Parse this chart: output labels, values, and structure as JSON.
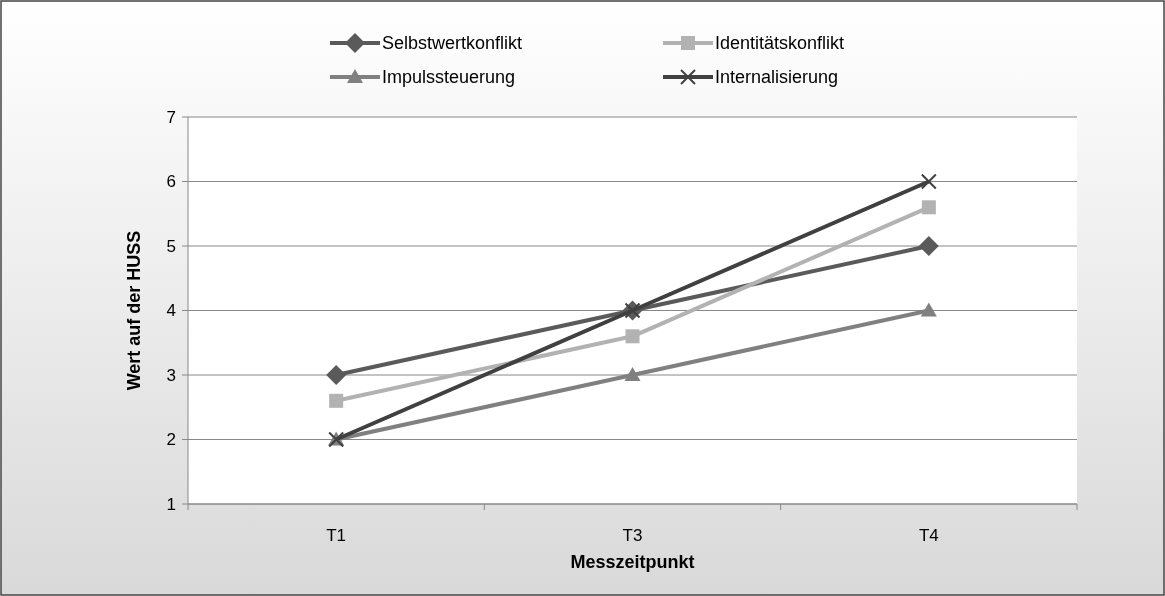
{
  "chart_data": {
    "type": "line",
    "xlabel": "Messzeitpunkt",
    "ylabel": "Wert auf der HUSS",
    "categories": [
      "T1",
      "T3",
      "T4"
    ],
    "ylim": [
      1,
      7
    ],
    "yticks": [
      1,
      2,
      3,
      4,
      5,
      6,
      7
    ],
    "grid": "y",
    "legend": "top",
    "line_style": "solid",
    "series": [
      {
        "name": "Selbstwertkonflikt",
        "color": "#5a5a5a",
        "marker": "diamond",
        "values": [
          3,
          4,
          5
        ]
      },
      {
        "name": "Identitätskonflikt",
        "color": "#b2b2b2",
        "marker": "square",
        "values": [
          2.6,
          3.6,
          5.6
        ]
      },
      {
        "name": "Impulssteuerung",
        "color": "#808080",
        "marker": "triangle",
        "values": [
          2,
          3,
          4
        ]
      },
      {
        "name": "Internalisierung",
        "color": "#404040",
        "marker": "cross",
        "values": [
          2,
          4,
          6
        ]
      }
    ]
  }
}
